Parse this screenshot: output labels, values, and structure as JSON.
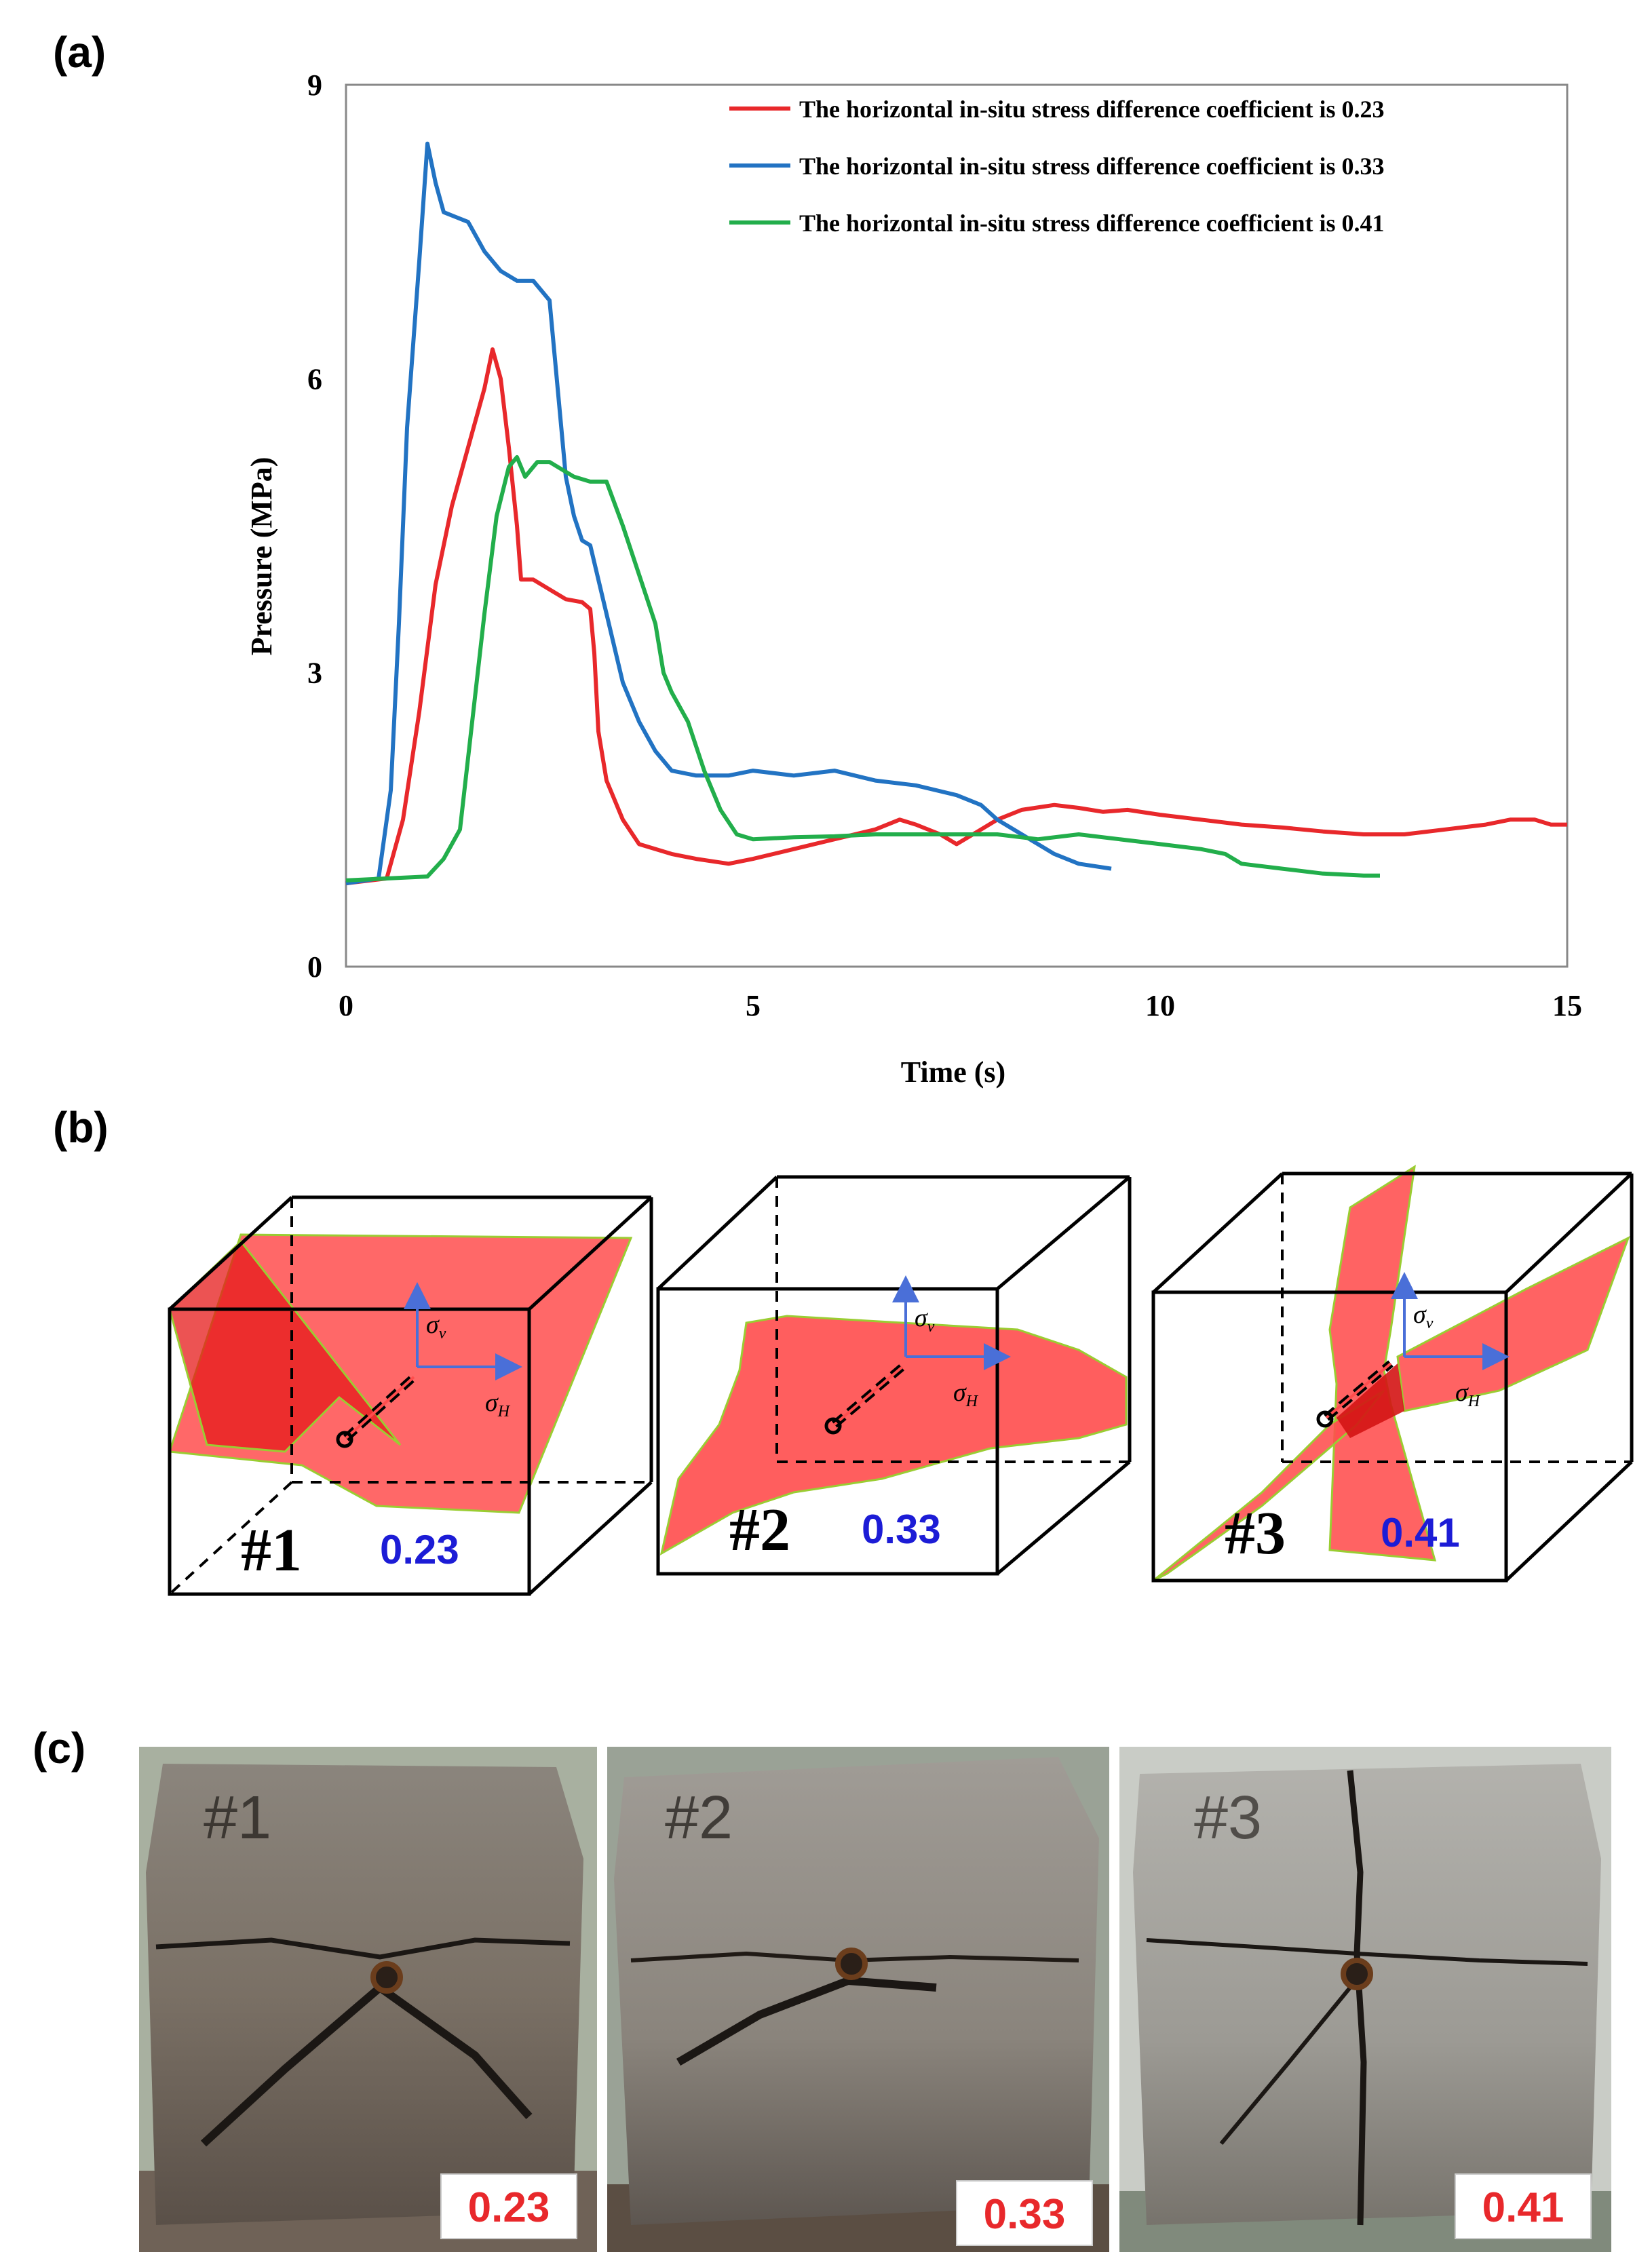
{
  "panels": {
    "a": "(a)",
    "b": "(b)",
    "c": "(c)"
  },
  "chart_data": {
    "type": "line",
    "title": "",
    "xlabel": "Time (s)",
    "ylabel": "Pressure (MPa)",
    "xlim": [
      0,
      15
    ],
    "ylim": [
      0,
      9
    ],
    "xticks": [
      0,
      5,
      10,
      15
    ],
    "yticks": [
      0,
      3,
      6,
      9
    ],
    "legend_position": "top-right",
    "series": [
      {
        "name": "The horizontal in-situ stress difference coefficient is 0.23",
        "color": "#e8282b",
        "x": [
          0,
          0.5,
          0.7,
          0.9,
          1.1,
          1.3,
          1.5,
          1.7,
          1.8,
          1.9,
          2.0,
          2.1,
          2.15,
          2.3,
          2.5,
          2.7,
          2.9,
          3.0,
          3.05,
          3.1,
          3.2,
          3.4,
          3.6,
          4.0,
          4.3,
          4.7,
          5.0,
          5.5,
          6.0,
          6.5,
          6.8,
          7.0,
          7.3,
          7.5,
          7.8,
          8.0,
          8.3,
          8.7,
          9.0,
          9.3,
          9.6,
          10.0,
          10.5,
          11.0,
          11.5,
          12.0,
          12.5,
          13.0,
          13.5,
          14.0,
          14.3,
          14.6,
          14.8,
          15.0
        ],
        "y": [
          0.85,
          0.9,
          1.5,
          2.6,
          3.9,
          4.7,
          5.3,
          5.9,
          6.3,
          6.0,
          5.3,
          4.5,
          3.95,
          3.95,
          3.85,
          3.75,
          3.72,
          3.65,
          3.2,
          2.4,
          1.9,
          1.5,
          1.25,
          1.15,
          1.1,
          1.05,
          1.1,
          1.2,
          1.3,
          1.4,
          1.5,
          1.45,
          1.35,
          1.25,
          1.4,
          1.5,
          1.6,
          1.65,
          1.62,
          1.58,
          1.6,
          1.55,
          1.5,
          1.45,
          1.42,
          1.38,
          1.35,
          1.35,
          1.4,
          1.45,
          1.5,
          1.5,
          1.45,
          1.45
        ]
      },
      {
        "name": "The horizontal in-situ stress difference coefficient is 0.33",
        "color": "#2273c3",
        "x": [
          0,
          0.4,
          0.55,
          0.65,
          0.75,
          0.9,
          1.0,
          1.1,
          1.2,
          1.35,
          1.5,
          1.7,
          1.9,
          2.1,
          2.3,
          2.5,
          2.6,
          2.7,
          2.8,
          2.9,
          3.0,
          3.2,
          3.4,
          3.6,
          3.8,
          4.0,
          4.3,
          4.7,
          5.0,
          5.5,
          6.0,
          6.5,
          7.0,
          7.5,
          7.8,
          8.0,
          8.3,
          8.7,
          9.0,
          9.4
        ],
        "y": [
          0.85,
          0.9,
          1.8,
          3.5,
          5.5,
          7.2,
          8.4,
          8.0,
          7.7,
          7.65,
          7.6,
          7.3,
          7.1,
          7.0,
          7.0,
          6.8,
          5.9,
          5.0,
          4.6,
          4.35,
          4.3,
          3.6,
          2.9,
          2.5,
          2.2,
          2.0,
          1.95,
          1.95,
          2.0,
          1.95,
          2.0,
          1.9,
          1.85,
          1.75,
          1.65,
          1.5,
          1.35,
          1.15,
          1.05,
          1.0
        ]
      },
      {
        "name": "The horizontal in-situ stress difference coefficient is 0.41",
        "color": "#22ae4b",
        "x": [
          0,
          0.5,
          1.0,
          1.2,
          1.4,
          1.55,
          1.7,
          1.85,
          2.0,
          2.1,
          2.2,
          2.35,
          2.5,
          2.8,
          3.0,
          3.2,
          3.4,
          3.6,
          3.8,
          3.9,
          4.0,
          4.2,
          4.4,
          4.6,
          4.8,
          5.0,
          5.5,
          6.0,
          6.5,
          7.0,
          7.5,
          8.0,
          8.5,
          9.0,
          9.5,
          10.0,
          10.5,
          10.8,
          11.0,
          11.5,
          12.0,
          12.5,
          12.7
        ],
        "y": [
          0.88,
          0.9,
          0.92,
          1.1,
          1.4,
          2.5,
          3.6,
          4.6,
          5.1,
          5.2,
          5.0,
          5.15,
          5.15,
          5.0,
          4.95,
          4.95,
          4.5,
          4.0,
          3.5,
          3.0,
          2.8,
          2.5,
          2.0,
          1.6,
          1.35,
          1.3,
          1.32,
          1.33,
          1.35,
          1.35,
          1.35,
          1.35,
          1.3,
          1.35,
          1.3,
          1.25,
          1.2,
          1.15,
          1.05,
          1.0,
          0.95,
          0.93,
          0.93
        ]
      }
    ]
  },
  "schematic": {
    "stress_axis_v": "σ",
    "stress_axis_v_sub": "v",
    "stress_axis_h": "σ",
    "stress_axis_h_sub": "H",
    "fracture_color": "#ff4d4d",
    "cubes": [
      {
        "id": "#1",
        "coefficient": "0.23"
      },
      {
        "id": "#2",
        "coefficient": "0.33"
      },
      {
        "id": "#3",
        "coefficient": "0.41"
      }
    ]
  },
  "photos": [
    {
      "sample_mark": "#1",
      "coefficient": "0.23"
    },
    {
      "sample_mark": "#2",
      "coefficient": "0.33"
    },
    {
      "sample_mark": "#3",
      "coefficient": "0.41"
    }
  ]
}
